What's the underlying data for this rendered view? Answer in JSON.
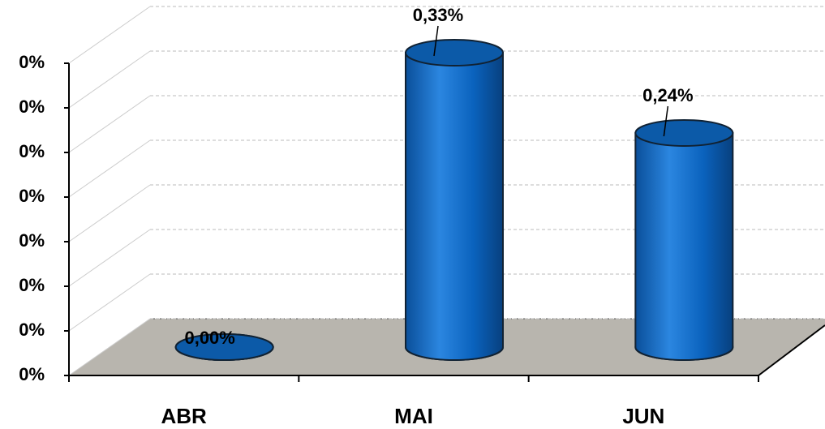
{
  "chart_data": {
    "type": "bar3d",
    "categories": [
      "ABR",
      "MAI",
      "JUN"
    ],
    "values": [
      0,
      0.33,
      0.24
    ],
    "value_labels": [
      "0,00%",
      "0,33%",
      "0,24%"
    ],
    "color": "#0a5fb4",
    "ylim": [
      0,
      0.35
    ],
    "yticks": [
      {
        "value": 0,
        "label": "0%"
      },
      {
        "value": 0.05,
        "label": "0%"
      },
      {
        "value": 0.1,
        "label": "0%"
      },
      {
        "value": 0.15,
        "label": "0%"
      },
      {
        "value": 0.2,
        "label": "0%"
      },
      {
        "value": 0.25,
        "label": "0%"
      },
      {
        "value": 0.3,
        "label": "0%"
      },
      {
        "value": 0.35,
        "label": "0%"
      }
    ],
    "grid": true
  }
}
